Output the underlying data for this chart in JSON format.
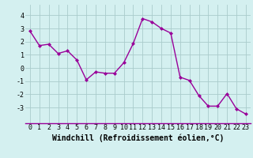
{
  "x": [
    0,
    1,
    2,
    3,
    4,
    5,
    6,
    7,
    8,
    9,
    10,
    11,
    12,
    13,
    14,
    15,
    16,
    17,
    18,
    19,
    20,
    21,
    22,
    23
  ],
  "y": [
    2.8,
    1.7,
    1.8,
    1.1,
    1.3,
    0.6,
    -0.9,
    -0.3,
    -0.4,
    -0.4,
    0.4,
    1.85,
    3.75,
    3.5,
    3.0,
    2.65,
    -0.7,
    -0.95,
    -2.1,
    -2.9,
    -2.9,
    -1.95,
    -3.1,
    -3.5
  ],
  "line_color": "#990099",
  "marker": "D",
  "marker_size": 2,
  "bg_color": "#d4f0f0",
  "grid_color": "#aacccc",
  "xlabel": "Windchill (Refroidissement éolien,°C)",
  "xlabel_fontsize": 7,
  "xtick_labels": [
    "0",
    "1",
    "2",
    "3",
    "4",
    "5",
    "6",
    "7",
    "8",
    "9",
    "10",
    "11",
    "12",
    "13",
    "14",
    "15",
    "16",
    "17",
    "18",
    "19",
    "20",
    "21",
    "22",
    "23"
  ],
  "ytick_labels": [
    "-3",
    "-2",
    "-1",
    "0",
    "1",
    "2",
    "3",
    "4"
  ],
  "ylim": [
    -4.2,
    4.8
  ],
  "xlim": [
    -0.5,
    23.5
  ],
  "tick_fontsize": 6,
  "line_width": 1.0
}
